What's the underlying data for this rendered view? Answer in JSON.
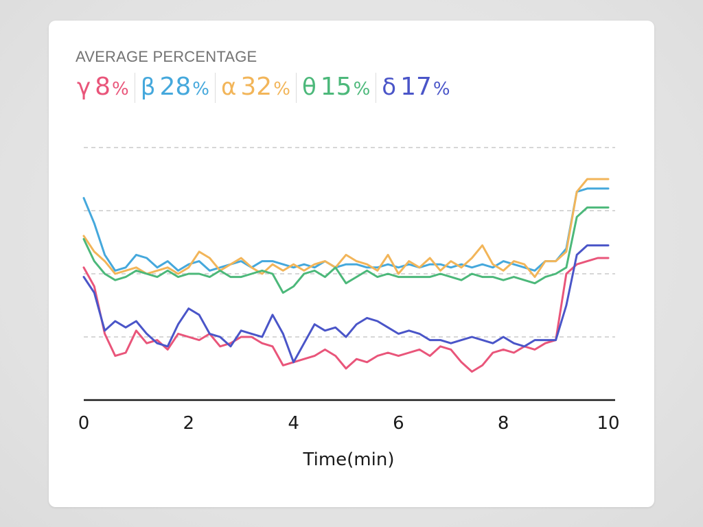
{
  "header": {
    "title": "AVERAGE PERCENTAGE"
  },
  "bands": [
    {
      "symbol": "γ",
      "value": "8",
      "unit": "%",
      "color": "#e9557a"
    },
    {
      "symbol": "β",
      "value": "28",
      "unit": "%",
      "color": "#45a8dc"
    },
    {
      "symbol": "α",
      "value": "32",
      "unit": "%",
      "color": "#f2b559"
    },
    {
      "symbol": "θ",
      "value": "15",
      "unit": "%",
      "color": "#4cb87a"
    },
    {
      "symbol": "δ",
      "value": "17",
      "unit": "%",
      "color": "#4a55c8"
    }
  ],
  "chart_data": {
    "type": "line",
    "xlabel": "Time(min)",
    "ylabel": "",
    "xlim": [
      0,
      10
    ],
    "ylim": [
      0,
      4
    ],
    "x_ticks": [
      0,
      2,
      4,
      6,
      8,
      10
    ],
    "x_tick_labels": [
      "0",
      "2",
      "4",
      "6",
      "8",
      "10"
    ],
    "grid": "horizontal dashed",
    "series": [
      {
        "symbol": "γ",
        "color": "#e9557a",
        "x": [
          0.0,
          0.2,
          0.4,
          0.6,
          0.8,
          1.0,
          1.2,
          1.4,
          1.6,
          1.8,
          2.0,
          2.2,
          2.4,
          2.6,
          2.8,
          3.0,
          3.2,
          3.4,
          3.6,
          3.8,
          4.0,
          4.2,
          4.4,
          4.6,
          4.8,
          5.0,
          5.2,
          5.4,
          5.6,
          5.8,
          6.0,
          6.2,
          6.4,
          6.6,
          6.8,
          7.0,
          7.2,
          7.4,
          7.6,
          7.8,
          8.0,
          8.2,
          8.4,
          8.6,
          8.8,
          9.0,
          9.2,
          9.4,
          9.6,
          9.8,
          10.0
        ],
        "y": [
          2.1,
          1.8,
          1.05,
          0.7,
          0.75,
          1.1,
          0.9,
          0.95,
          0.8,
          1.05,
          1.0,
          0.95,
          1.05,
          0.85,
          0.9,
          1.0,
          1.0,
          0.9,
          0.85,
          0.55,
          0.6,
          0.65,
          0.7,
          0.8,
          0.7,
          0.5,
          0.65,
          0.6,
          0.7,
          0.75,
          0.7,
          0.75,
          0.8,
          0.7,
          0.85,
          0.8,
          0.6,
          0.45,
          0.55,
          0.75,
          0.8,
          0.75,
          0.85,
          0.8,
          0.9,
          0.95,
          2.0,
          2.15,
          2.2,
          2.25,
          2.25
        ]
      },
      {
        "symbol": "β",
        "color": "#45a8dc",
        "x": [
          0.0,
          0.2,
          0.4,
          0.6,
          0.8,
          1.0,
          1.2,
          1.4,
          1.6,
          1.8,
          2.0,
          2.2,
          2.4,
          2.6,
          2.8,
          3.0,
          3.2,
          3.4,
          3.6,
          3.8,
          4.0,
          4.2,
          4.4,
          4.6,
          4.8,
          5.0,
          5.2,
          5.4,
          5.6,
          5.8,
          6.0,
          6.2,
          6.4,
          6.6,
          6.8,
          7.0,
          7.2,
          7.4,
          7.6,
          7.8,
          8.0,
          8.2,
          8.4,
          8.6,
          8.8,
          9.0,
          9.2,
          9.4,
          9.6,
          9.8,
          10.0
        ],
        "y": [
          3.2,
          2.8,
          2.3,
          2.05,
          2.1,
          2.3,
          2.25,
          2.1,
          2.2,
          2.05,
          2.15,
          2.2,
          2.05,
          2.1,
          2.15,
          2.2,
          2.1,
          2.2,
          2.2,
          2.15,
          2.1,
          2.15,
          2.1,
          2.2,
          2.1,
          2.15,
          2.15,
          2.1,
          2.1,
          2.15,
          2.1,
          2.15,
          2.1,
          2.15,
          2.15,
          2.1,
          2.15,
          2.1,
          2.15,
          2.1,
          2.2,
          2.15,
          2.1,
          2.05,
          2.2,
          2.2,
          2.4,
          3.3,
          3.35,
          3.35,
          3.35
        ]
      },
      {
        "symbol": "α",
        "color": "#f2b559",
        "x": [
          0.0,
          0.2,
          0.4,
          0.6,
          0.8,
          1.0,
          1.2,
          1.4,
          1.6,
          1.8,
          2.0,
          2.2,
          2.4,
          2.6,
          2.8,
          3.0,
          3.2,
          3.4,
          3.6,
          3.8,
          4.0,
          4.2,
          4.4,
          4.6,
          4.8,
          5.0,
          5.2,
          5.4,
          5.6,
          5.8,
          6.0,
          6.2,
          6.4,
          6.6,
          6.8,
          7.0,
          7.2,
          7.4,
          7.6,
          7.8,
          8.0,
          8.2,
          8.4,
          8.6,
          8.8,
          9.0,
          9.2,
          9.4,
          9.6,
          9.8,
          10.0
        ],
        "y": [
          2.6,
          2.35,
          2.2,
          2.0,
          2.05,
          2.1,
          2.0,
          2.05,
          2.1,
          2.0,
          2.1,
          2.35,
          2.25,
          2.05,
          2.15,
          2.25,
          2.1,
          2.0,
          2.15,
          2.05,
          2.15,
          2.05,
          2.15,
          2.2,
          2.1,
          2.3,
          2.2,
          2.15,
          2.05,
          2.3,
          2.0,
          2.2,
          2.1,
          2.25,
          2.05,
          2.2,
          2.1,
          2.25,
          2.45,
          2.15,
          2.05,
          2.2,
          2.15,
          1.95,
          2.2,
          2.2,
          2.35,
          3.3,
          3.5,
          3.5,
          3.5
        ]
      },
      {
        "symbol": "θ",
        "color": "#4cb87a",
        "x": [
          0.0,
          0.2,
          0.4,
          0.6,
          0.8,
          1.0,
          1.2,
          1.4,
          1.6,
          1.8,
          2.0,
          2.2,
          2.4,
          2.6,
          2.8,
          3.0,
          3.2,
          3.4,
          3.6,
          3.8,
          4.0,
          4.2,
          4.4,
          4.6,
          4.8,
          5.0,
          5.2,
          5.4,
          5.6,
          5.8,
          6.0,
          6.2,
          6.4,
          6.6,
          6.8,
          7.0,
          7.2,
          7.4,
          7.6,
          7.8,
          8.0,
          8.2,
          8.4,
          8.6,
          8.8,
          9.0,
          9.2,
          9.4,
          9.6,
          9.8,
          10.0
        ],
        "y": [
          2.55,
          2.2,
          2.0,
          1.9,
          1.95,
          2.05,
          2.0,
          1.95,
          2.05,
          1.95,
          2.0,
          2.0,
          1.95,
          2.05,
          1.95,
          1.95,
          2.0,
          2.05,
          2.0,
          1.7,
          1.8,
          2.0,
          2.05,
          1.95,
          2.1,
          1.85,
          1.95,
          2.05,
          1.95,
          2.0,
          1.95,
          1.95,
          1.95,
          1.95,
          2.0,
          1.95,
          1.9,
          2.0,
          1.95,
          1.95,
          1.9,
          1.95,
          1.9,
          1.85,
          1.95,
          2.0,
          2.1,
          2.9,
          3.05,
          3.05,
          3.05
        ]
      },
      {
        "symbol": "δ",
        "color": "#4a55c8",
        "x": [
          0.0,
          0.2,
          0.4,
          0.6,
          0.8,
          1.0,
          1.2,
          1.4,
          1.6,
          1.8,
          2.0,
          2.2,
          2.4,
          2.6,
          2.8,
          3.0,
          3.2,
          3.4,
          3.6,
          3.8,
          4.0,
          4.2,
          4.4,
          4.6,
          4.8,
          5.0,
          5.2,
          5.4,
          5.6,
          5.8,
          6.0,
          6.2,
          6.4,
          6.6,
          6.8,
          7.0,
          7.2,
          7.4,
          7.6,
          7.8,
          8.0,
          8.2,
          8.4,
          8.6,
          8.8,
          9.0,
          9.2,
          9.4,
          9.6,
          9.8,
          10.0
        ],
        "y": [
          1.95,
          1.7,
          1.1,
          1.25,
          1.15,
          1.25,
          1.05,
          0.9,
          0.85,
          1.2,
          1.45,
          1.35,
          1.05,
          1.0,
          0.85,
          1.1,
          1.05,
          1.0,
          1.35,
          1.05,
          0.6,
          0.9,
          1.2,
          1.1,
          1.15,
          1.0,
          1.2,
          1.3,
          1.25,
          1.15,
          1.05,
          1.1,
          1.05,
          0.95,
          0.95,
          0.9,
          0.95,
          1.0,
          0.95,
          0.9,
          1.0,
          0.9,
          0.85,
          0.95,
          0.95,
          0.95,
          1.5,
          2.3,
          2.45,
          2.45,
          2.45
        ]
      }
    ]
  }
}
